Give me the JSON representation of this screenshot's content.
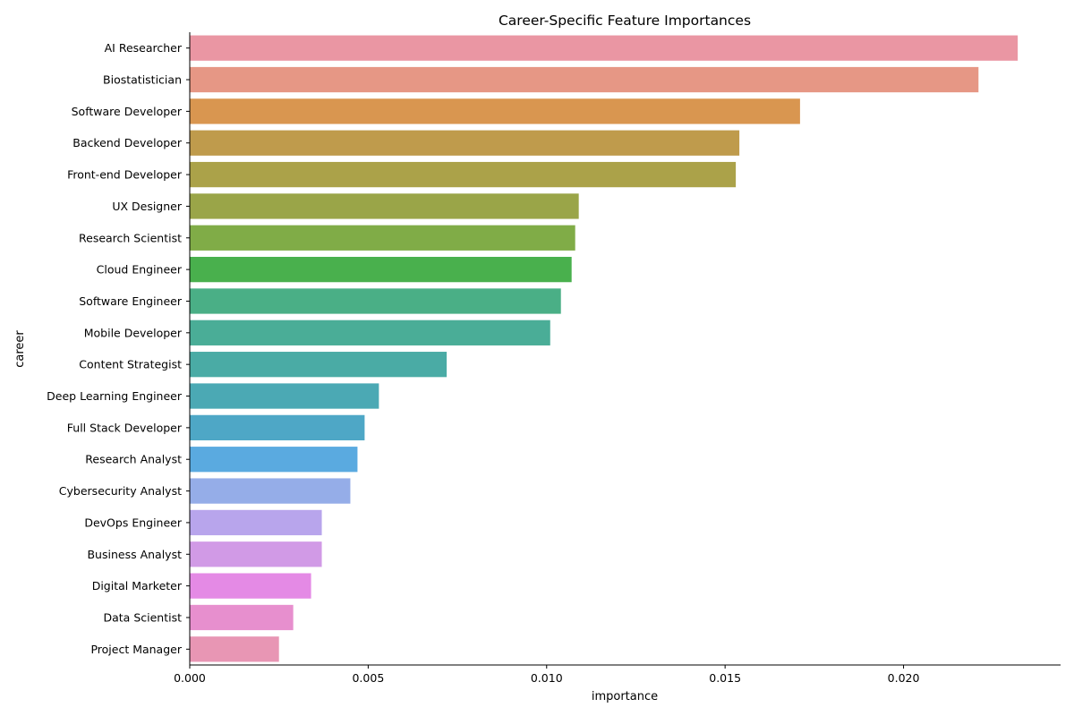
{
  "chart_data": {
    "type": "bar",
    "orientation": "horizontal",
    "title": "Career-Specific Feature Importances",
    "xlabel": "importance",
    "ylabel": "career",
    "xlim": [
      0,
      0.0244
    ],
    "xticks": [
      0.0,
      0.005,
      0.01,
      0.015,
      0.02
    ],
    "xtick_labels": [
      "0.000",
      "0.005",
      "0.010",
      "0.015",
      "0.020"
    ],
    "grid": false,
    "categories": [
      "AI Researcher",
      "Biostatistician",
      "Software Developer",
      "Backend Developer",
      "Front-end Developer",
      "UX Designer",
      "Research Scientist",
      "Cloud Engineer",
      "Software Engineer",
      "Mobile Developer",
      "Content Strategist",
      "Deep Learning Engineer",
      "Full Stack Developer",
      "Research Analyst",
      "Cybersecurity Analyst",
      "DevOps Engineer",
      "Business Analyst",
      "Digital Marketer",
      "Data Scientist",
      "Project Manager"
    ],
    "values": [
      0.0232,
      0.0221,
      0.0171,
      0.0154,
      0.0153,
      0.0109,
      0.0108,
      0.0107,
      0.0104,
      0.0101,
      0.0072,
      0.0053,
      0.0049,
      0.0047,
      0.0045,
      0.0037,
      0.0037,
      0.0034,
      0.0029,
      0.0025
    ],
    "colors": [
      "#ea96a3",
      "#e69785",
      "#d99650",
      "#bf9b4c",
      "#aba249",
      "#9aa548",
      "#80ac47",
      "#49b04d",
      "#4aaf86",
      "#4aad97",
      "#4aaba5",
      "#4ba9b4",
      "#4ea7c6",
      "#5aaae0",
      "#95ade8",
      "#b8a5ec",
      "#d19ae6",
      "#e48ae5",
      "#e78fce",
      "#e896b4"
    ]
  }
}
